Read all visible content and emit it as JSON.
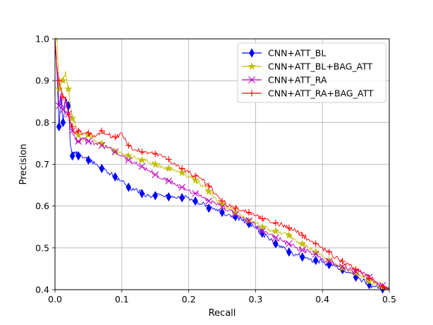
{
  "chart_data": {
    "type": "line",
    "title": "",
    "xlabel": "Recall",
    "ylabel": "Precision",
    "xlim": [
      0.0,
      0.5
    ],
    "ylim": [
      0.4,
      1.0
    ],
    "xticks": [
      "0.0",
      "0.1",
      "0.2",
      "0.3",
      "0.4",
      "0.5"
    ],
    "yticks": [
      "0.4",
      "0.5",
      "0.6",
      "0.7",
      "0.8",
      "0.9",
      "1.0"
    ],
    "grid": true,
    "legend_position": "top-right",
    "series": [
      {
        "name": "CNN+ATT_BL",
        "color": "#0000ff",
        "marker": "diamond",
        "x": [
          0.0,
          0.003,
          0.006,
          0.009,
          0.012,
          0.016,
          0.02,
          0.023,
          0.026,
          0.03,
          0.035,
          0.04,
          0.05,
          0.06,
          0.07,
          0.08,
          0.09,
          0.1,
          0.11,
          0.12,
          0.13,
          0.14,
          0.15,
          0.16,
          0.17,
          0.18,
          0.19,
          0.2,
          0.21,
          0.22,
          0.23,
          0.24,
          0.25,
          0.26,
          0.27,
          0.28,
          0.29,
          0.3,
          0.31,
          0.32,
          0.33,
          0.34,
          0.35,
          0.36,
          0.37,
          0.38,
          0.39,
          0.4,
          0.41,
          0.42,
          0.43,
          0.44,
          0.45,
          0.46,
          0.47,
          0.48,
          0.49,
          0.5
        ],
        "y": [
          1.0,
          0.92,
          0.79,
          0.86,
          0.8,
          0.86,
          0.84,
          0.75,
          0.72,
          0.73,
          0.72,
          0.72,
          0.71,
          0.7,
          0.69,
          0.68,
          0.67,
          0.66,
          0.645,
          0.64,
          0.63,
          0.625,
          0.625,
          0.625,
          0.622,
          0.62,
          0.62,
          0.62,
          0.612,
          0.605,
          0.595,
          0.59,
          0.585,
          0.58,
          0.575,
          0.565,
          0.558,
          0.548,
          0.535,
          0.52,
          0.51,
          0.5,
          0.49,
          0.485,
          0.478,
          0.472,
          0.47,
          0.465,
          0.46,
          0.455,
          0.448,
          0.44,
          0.43,
          0.422,
          0.412,
          0.407,
          0.402,
          0.4
        ]
      },
      {
        "name": "CNN+ATT_BL+BAG_ATT",
        "color": "#bfbf00",
        "marker": "star",
        "x": [
          0.0,
          0.003,
          0.006,
          0.009,
          0.012,
          0.016,
          0.02,
          0.023,
          0.026,
          0.03,
          0.035,
          0.04,
          0.05,
          0.06,
          0.07,
          0.08,
          0.09,
          0.1,
          0.11,
          0.12,
          0.13,
          0.14,
          0.15,
          0.16,
          0.17,
          0.18,
          0.19,
          0.2,
          0.21,
          0.22,
          0.23,
          0.24,
          0.25,
          0.26,
          0.27,
          0.28,
          0.29,
          0.3,
          0.31,
          0.32,
          0.33,
          0.34,
          0.35,
          0.36,
          0.37,
          0.38,
          0.39,
          0.4,
          0.41,
          0.42,
          0.43,
          0.44,
          0.45,
          0.46,
          0.47,
          0.48,
          0.49,
          0.5
        ],
        "y": [
          1.0,
          1.0,
          0.88,
          0.9,
          0.9,
          0.92,
          0.88,
          0.84,
          0.81,
          0.8,
          0.77,
          0.76,
          0.77,
          0.755,
          0.75,
          0.74,
          0.73,
          0.725,
          0.72,
          0.715,
          0.71,
          0.705,
          0.7,
          0.695,
          0.69,
          0.685,
          0.68,
          0.672,
          0.662,
          0.65,
          0.635,
          0.62,
          0.605,
          0.595,
          0.585,
          0.575,
          0.565,
          0.56,
          0.55,
          0.545,
          0.54,
          0.535,
          0.53,
          0.52,
          0.51,
          0.5,
          0.49,
          0.48,
          0.47,
          0.462,
          0.452,
          0.445,
          0.44,
          0.43,
          0.42,
          0.41,
          0.405,
          0.4
        ]
      },
      {
        "name": "CNN+ATT_RA",
        "color": "#bf00bf",
        "marker": "x",
        "x": [
          0.0,
          0.003,
          0.006,
          0.009,
          0.012,
          0.016,
          0.02,
          0.023,
          0.026,
          0.03,
          0.035,
          0.04,
          0.05,
          0.06,
          0.07,
          0.08,
          0.09,
          0.1,
          0.11,
          0.12,
          0.13,
          0.14,
          0.15,
          0.16,
          0.17,
          0.18,
          0.19,
          0.2,
          0.21,
          0.22,
          0.23,
          0.24,
          0.25,
          0.26,
          0.27,
          0.28,
          0.29,
          0.3,
          0.31,
          0.32,
          0.33,
          0.34,
          0.35,
          0.36,
          0.37,
          0.38,
          0.39,
          0.4,
          0.41,
          0.42,
          0.43,
          0.44,
          0.45,
          0.46,
          0.47,
          0.48,
          0.49,
          0.5
        ],
        "y": [
          1.0,
          0.93,
          0.84,
          0.87,
          0.83,
          0.86,
          0.82,
          0.8,
          0.78,
          0.76,
          0.755,
          0.76,
          0.755,
          0.75,
          0.745,
          0.74,
          0.73,
          0.722,
          0.71,
          0.702,
          0.695,
          0.685,
          0.675,
          0.665,
          0.66,
          0.652,
          0.645,
          0.638,
          0.63,
          0.62,
          0.612,
          0.605,
          0.598,
          0.59,
          0.58,
          0.572,
          0.565,
          0.552,
          0.54,
          0.532,
          0.524,
          0.517,
          0.51,
          0.5,
          0.495,
          0.49,
          0.485,
          0.475,
          0.468,
          0.46,
          0.455,
          0.45,
          0.443,
          0.438,
          0.43,
          0.42,
          0.41,
          0.4
        ]
      },
      {
        "name": "CNN+ATT_RA+BAG_ATT",
        "color": "#ff0000",
        "marker": "plus",
        "x": [
          0.0,
          0.003,
          0.006,
          0.009,
          0.012,
          0.016,
          0.02,
          0.023,
          0.026,
          0.03,
          0.035,
          0.04,
          0.05,
          0.06,
          0.07,
          0.08,
          0.09,
          0.1,
          0.11,
          0.12,
          0.13,
          0.14,
          0.15,
          0.16,
          0.17,
          0.18,
          0.19,
          0.2,
          0.21,
          0.22,
          0.23,
          0.24,
          0.25,
          0.26,
          0.27,
          0.28,
          0.29,
          0.3,
          0.31,
          0.32,
          0.33,
          0.34,
          0.35,
          0.36,
          0.37,
          0.38,
          0.39,
          0.4,
          0.41,
          0.42,
          0.43,
          0.44,
          0.45,
          0.46,
          0.47,
          0.48,
          0.49,
          0.5
        ],
        "y": [
          1.0,
          0.93,
          0.9,
          0.88,
          0.86,
          0.85,
          0.82,
          0.8,
          0.79,
          0.775,
          0.78,
          0.77,
          0.775,
          0.765,
          0.78,
          0.77,
          0.765,
          0.775,
          0.745,
          0.735,
          0.73,
          0.728,
          0.725,
          0.72,
          0.712,
          0.7,
          0.69,
          0.68,
          0.672,
          0.662,
          0.648,
          0.628,
          0.612,
          0.6,
          0.595,
          0.59,
          0.585,
          0.578,
          0.57,
          0.565,
          0.56,
          0.555,
          0.548,
          0.54,
          0.53,
          0.52,
          0.51,
          0.5,
          0.49,
          0.478,
          0.468,
          0.458,
          0.448,
          0.438,
          0.428,
          0.418,
          0.408,
          0.4
        ]
      }
    ]
  }
}
